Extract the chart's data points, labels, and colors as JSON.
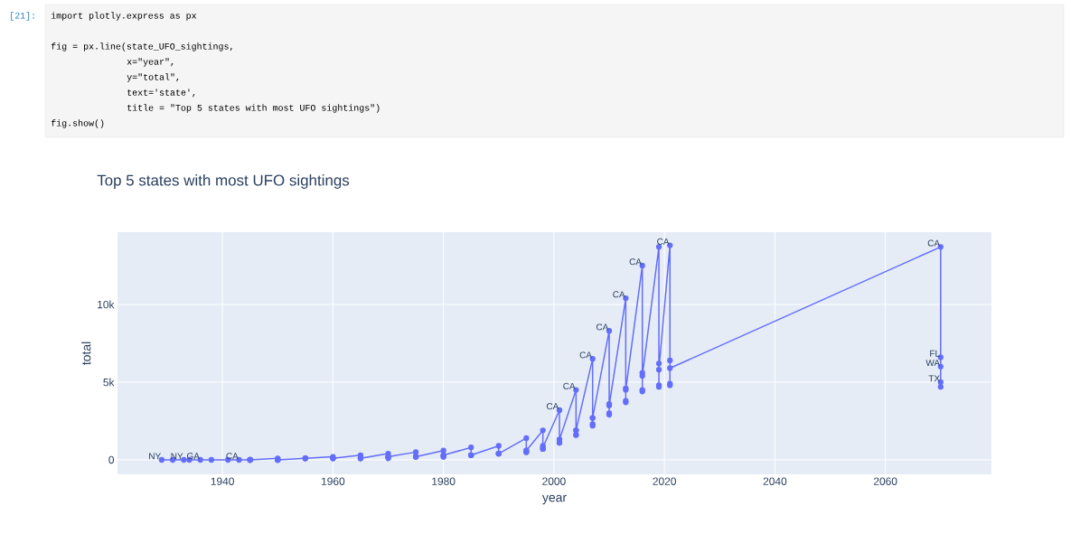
{
  "chart_data": {
    "type": "line",
    "title": "Top 5 states with most UFO sightings",
    "xlabel": "year",
    "ylabel": "total",
    "annotations": [
      "[21]:",
      "import plotly.express as px",
      "fig = px.line(state_UFO_sightings,",
      "             x=\"year\",",
      "             y=\"total\",",
      "             text='state',",
      "             title = \"Top 5 states with most UFO sightings\")",
      "fig.show()"
    ],
    "x": [
      1929,
      1931,
      1933,
      1934,
      1936,
      1938,
      1941,
      1943,
      1945,
      1945,
      1945,
      1945,
      1945,
      1950,
      1950,
      1950,
      1950,
      1950,
      1955,
      1955,
      1955,
      1955,
      1955,
      1960,
      1960,
      1960,
      1960,
      1960,
      1965,
      1965,
      1965,
      1965,
      1965,
      1970,
      1970,
      1970,
      1970,
      1970,
      1975,
      1975,
      1975,
      1975,
      1975,
      1980,
      1980,
      1980,
      1980,
      1980,
      1985,
      1985,
      1985,
      1985,
      1985,
      1990,
      1990,
      1990,
      1990,
      1990,
      1995,
      1995,
      1995,
      1995,
      1995,
      1998,
      1998,
      1998,
      1998,
      1998,
      2001,
      2001,
      2001,
      2001,
      2001,
      2004,
      2004,
      2004,
      2004,
      2004,
      2007,
      2007,
      2007,
      2007,
      2007,
      2010,
      2010,
      2010,
      2010,
      2010,
      2013,
      2013,
      2013,
      2013,
      2013,
      2016,
      2016,
      2016,
      2016,
      2016,
      2019,
      2019,
      2019,
      2019,
      2019,
      2021,
      2021,
      2021,
      2021,
      2021,
      2070,
      2070,
      2070,
      2070,
      2070
    ],
    "values": [
      0,
      0,
      0,
      0,
      0,
      0,
      0,
      0,
      0,
      0,
      0,
      0,
      0,
      100,
      0,
      0,
      0,
      0,
      100,
      100,
      100,
      100,
      100,
      200,
      100,
      100,
      100,
      100,
      300,
      100,
      100,
      100,
      100,
      400,
      200,
      100,
      200,
      200,
      500,
      200,
      200,
      200,
      200,
      600,
      300,
      200,
      200,
      300,
      800,
      300,
      300,
      300,
      300,
      900,
      400,
      400,
      400,
      400,
      1400,
      600,
      500,
      500,
      600,
      1900,
      900,
      700,
      700,
      800,
      3200,
      1300,
      1100,
      1100,
      1300,
      4500,
      1900,
      1600,
      1600,
      1900,
      6500,
      2700,
      2200,
      2300,
      2700,
      8300,
      3600,
      2900,
      3000,
      3500,
      10400,
      4600,
      3700,
      3800,
      4500,
      12500,
      5600,
      4400,
      4500,
      5400,
      13700,
      6200,
      4700,
      4800,
      5800,
      13800,
      6400,
      4800,
      4900,
      5900,
      13700,
      6600,
      4700,
      5000,
      6000
    ],
    "value_labels": [
      "NY",
      null,
      "NY",
      null,
      "GA",
      null,
      null,
      "CA",
      null,
      null,
      null,
      null,
      null,
      null,
      null,
      null,
      null,
      null,
      null,
      null,
      null,
      null,
      null,
      null,
      null,
      null,
      null,
      null,
      null,
      null,
      null,
      null,
      null,
      null,
      null,
      null,
      null,
      null,
      null,
      null,
      null,
      null,
      null,
      null,
      null,
      null,
      null,
      null,
      null,
      null,
      null,
      null,
      null,
      null,
      null,
      null,
      null,
      null,
      null,
      null,
      null,
      null,
      null,
      null,
      null,
      null,
      null,
      null,
      "CA",
      null,
      null,
      null,
      null,
      "CA",
      null,
      null,
      null,
      null,
      "CA",
      null,
      null,
      null,
      null,
      "CA",
      null,
      null,
      null,
      null,
      "CA",
      null,
      null,
      null,
      null,
      "CA",
      null,
      null,
      null,
      null,
      null,
      null,
      null,
      null,
      null,
      "CA",
      null,
      null,
      null,
      null,
      "CA",
      "FL",
      null,
      "TX",
      "WA"
    ],
    "color": "#636efa",
    "marker": "circle",
    "grid": true,
    "xlim": [
      1921,
      2079.2
    ],
    "ylim": [
      -930,
      14650
    ],
    "xticks": [
      1940,
      1960,
      1980,
      2000,
      2020,
      2040,
      2060
    ],
    "yticks": [
      0,
      {
        "value": 5000,
        "label": "5k"
      },
      {
        "value": 10000,
        "label": "10k"
      }
    ]
  }
}
